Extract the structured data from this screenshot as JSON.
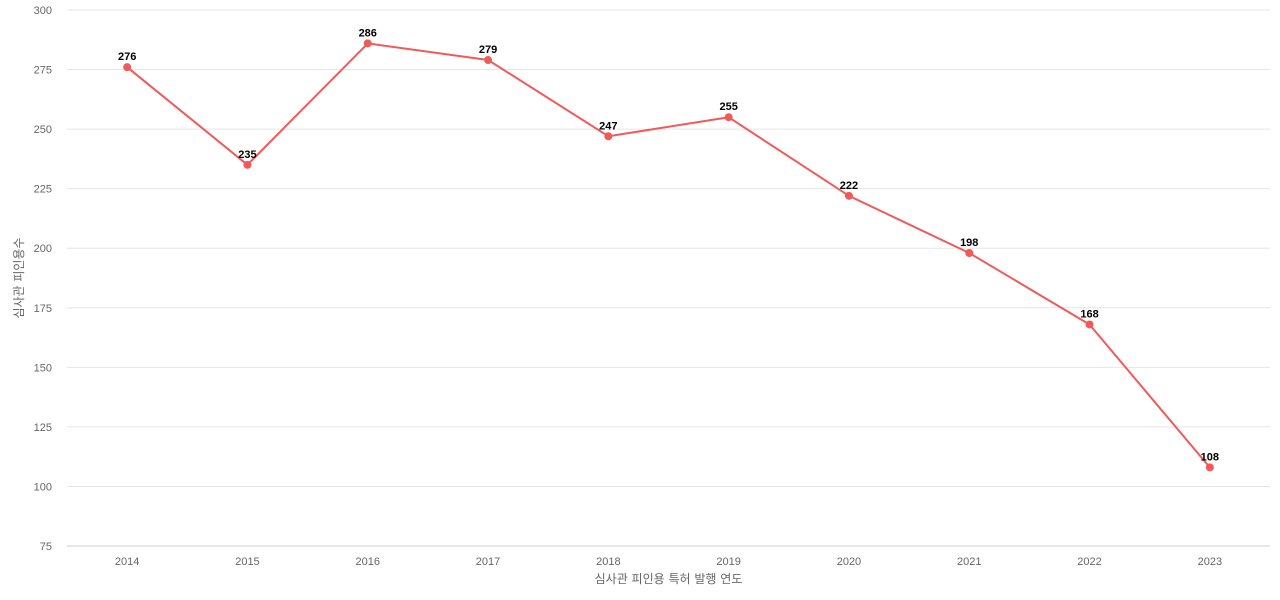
{
  "chart_data": {
    "type": "line",
    "title": "",
    "xlabel": "심사관 피인용 특허 발행 연도",
    "ylabel": "심사관 피인용수",
    "ylim": [
      75,
      300
    ],
    "yticks": [
      75,
      100,
      125,
      150,
      175,
      200,
      225,
      250,
      275,
      300
    ],
    "grid": true,
    "legend": "none",
    "categories": [
      "2014",
      "2015",
      "2016",
      "2017",
      "2018",
      "2019",
      "2020",
      "2021",
      "2022",
      "2023"
    ],
    "series": [
      {
        "values": [
          276,
          235,
          286,
          279,
          247,
          255,
          222,
          198,
          168,
          108
        ],
        "color": "#f05a5a"
      }
    ]
  }
}
